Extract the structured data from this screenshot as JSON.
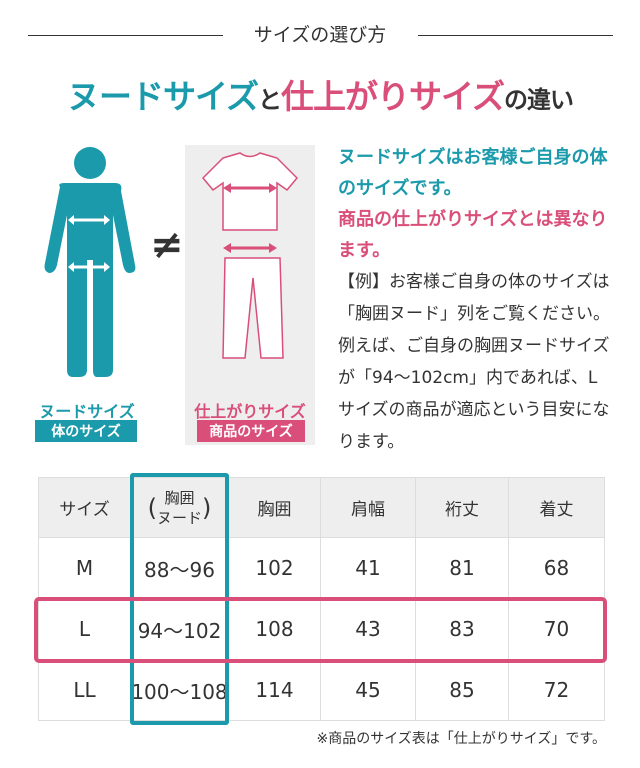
{
  "header": {
    "subtitle": "サイズの選び方"
  },
  "title": {
    "part1": "ヌードサイズ",
    "part2": "と",
    "part3": "仕上がりサイズ",
    "part4": "の違い"
  },
  "illustration": {
    "body_label": "ヌードサイズ",
    "body_tag": "体のサイズ",
    "garment_label": "仕上がりサイズ",
    "garment_tag": "商品のサイズ",
    "not_equal": "≠"
  },
  "description": {
    "line1": "ヌードサイズはお客様ご自身の体のサイズです。",
    "line2": "商品の仕上がりサイズとは異なります。",
    "body": "【例】お客様ご自身の体のサイズは「胸囲ヌード」列をご覧ください。例えば、ご自身の胸囲ヌードサイズが「94〜102cm」内であれば、Lサイズの商品が適応という目安になります。"
  },
  "table": {
    "headers": [
      "サイズ",
      "胸囲\nヌード",
      "胸囲",
      "肩幅",
      "裄丈",
      "着丈"
    ],
    "rows": [
      [
        "M",
        "88〜96",
        "102",
        "41",
        "81",
        "68"
      ],
      [
        "L",
        "94〜102",
        "108",
        "43",
        "83",
        "70"
      ],
      [
        "LL",
        "100〜108",
        "114",
        "45",
        "85",
        "72"
      ]
    ]
  },
  "note": "※商品のサイズ表は「仕上がりサイズ」です。",
  "colors": {
    "teal": "#1b9aab",
    "pink": "#d94f7a"
  }
}
